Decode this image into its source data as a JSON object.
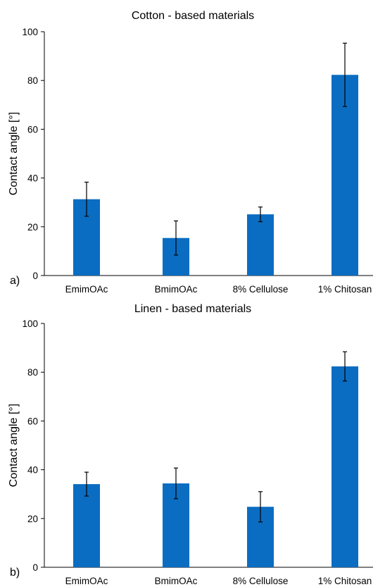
{
  "chart_data": [
    {
      "type": "bar",
      "panel_label": "a)",
      "title": "Cotton - based materials",
      "ylabel": "Contact angle [°]",
      "xlabel": "",
      "categories": [
        "EmimOAc",
        "BmimOAc",
        "8% Cellulose",
        "1% Chitosan"
      ],
      "values": [
        31.3,
        15.4,
        25.1,
        82.3
      ],
      "errors": [
        7.0,
        7.0,
        3.0,
        13.0
      ],
      "ylim": [
        0,
        100
      ],
      "yticks": [
        "0",
        "20",
        "40",
        "60",
        "80",
        "100"
      ],
      "grid": false,
      "bar_color": "#0a6dc2"
    },
    {
      "type": "bar",
      "panel_label": "b)",
      "title": "Linen - based materials",
      "ylabel": "Contact angle [°]",
      "xlabel": "",
      "categories": [
        "EmimOAc",
        "BmimOAc",
        "8% Cellulose",
        "1% Chitosan"
      ],
      "values": [
        34.1,
        34.4,
        24.8,
        82.4
      ],
      "errors": [
        4.9,
        6.3,
        6.2,
        6.0
      ],
      "ylim": [
        0,
        100
      ],
      "yticks": [
        "0",
        "20",
        "40",
        "60",
        "80",
        "100"
      ],
      "grid": false,
      "bar_color": "#0a6dc2"
    }
  ]
}
